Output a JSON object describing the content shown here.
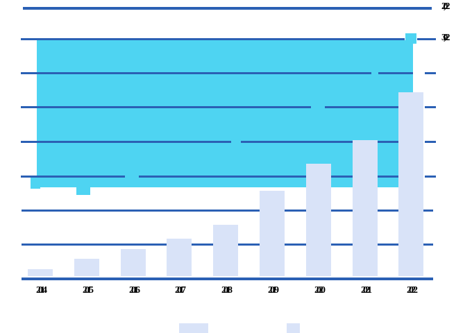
{
  "chart_data": {
    "type": "combo",
    "categories": [
      "2014",
      "2015",
      "2016",
      "2017",
      "2018",
      "2019",
      "2020",
      "2021",
      "2022"
    ],
    "series": [
      {
        "name": "bar-series",
        "type": "bar",
        "color": "#D9E3F8",
        "values": [
          0.2,
          0.5,
          0.8,
          1.1,
          1.5,
          2.5,
          3.3,
          4.0,
          5.4
        ]
      },
      {
        "name": "area-series",
        "type": "area",
        "color": "#4ED4F2",
        "band_low": 2.61,
        "band_high": 6.94,
        "has_end_marker": true
      }
    ],
    "title": "",
    "xlabel": "",
    "ylabel": "",
    "ylim": [
      0,
      8
    ],
    "grid": "horizontal",
    "gridline_step": 1,
    "right_axis_labels": [
      "2,02",
      "3,02"
    ],
    "legend_position": "bottom"
  },
  "right_labels": {
    "top": "2,02",
    "second": "3,02"
  },
  "colors": {
    "grid": "#2B60B4",
    "axis": "#2B60B4",
    "bar_fill": "#D9E3F8",
    "area_fill": "#4ED4F2",
    "text": "#000000",
    "background": "#FFFFFF"
  },
  "legend": {
    "swatches": [
      {
        "name": "legend-swatch-1",
        "color": "#D9E3F8"
      },
      {
        "name": "legend-swatch-2",
        "color": "#D9E3F8"
      }
    ]
  }
}
